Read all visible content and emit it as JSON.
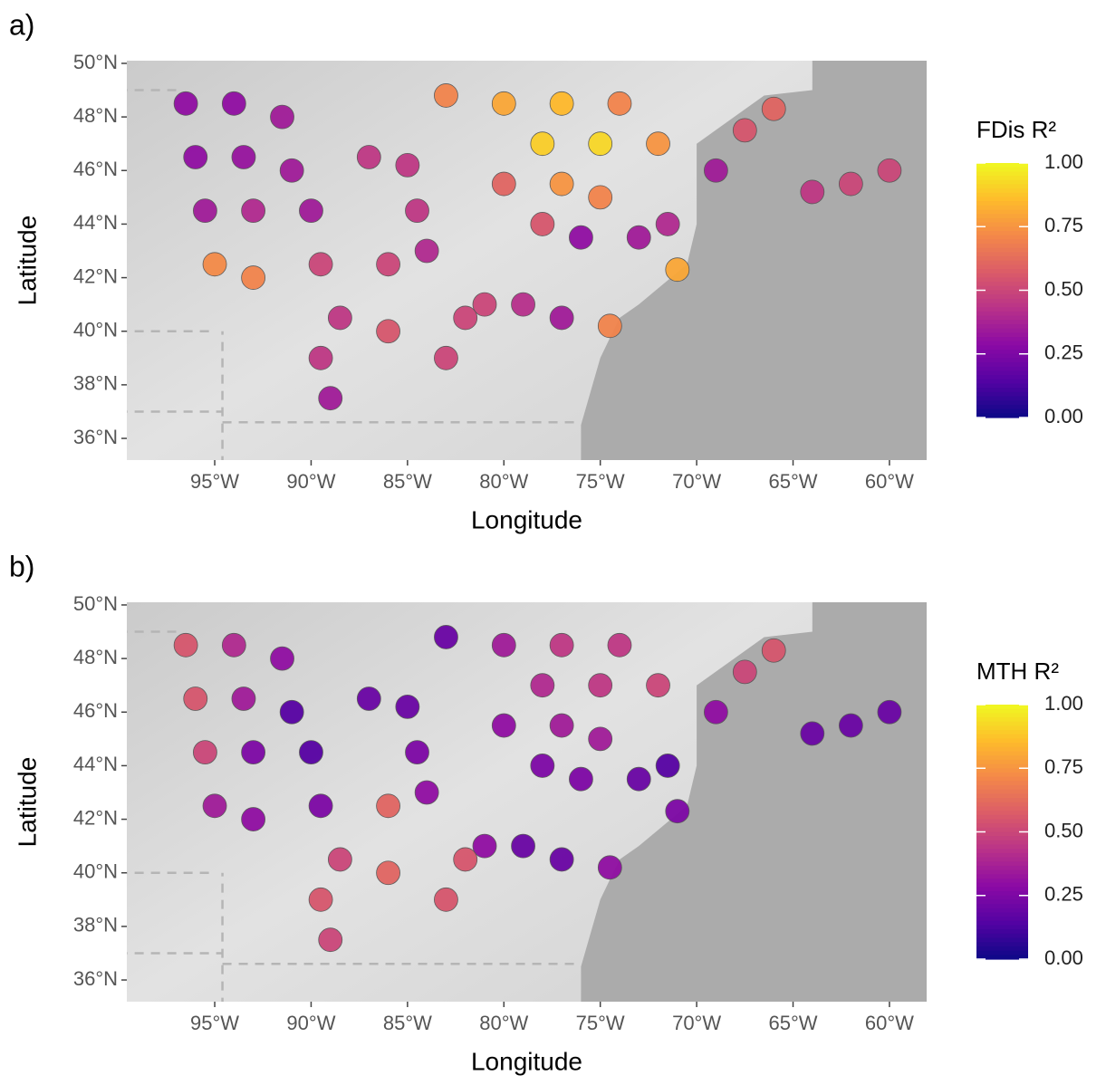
{
  "chart_data": [
    {
      "type": "scatter",
      "panel_label": "a)",
      "xlabel": "Longitude",
      "ylabel": "Latitude",
      "colorbar_title": "FDis R²",
      "colormap": "plasma",
      "clim": [
        0,
        1
      ],
      "xlim": [
        -99.56,
        -58.07
      ],
      "ylim": [
        35.19,
        50.1
      ],
      "xticks": [
        {
          "value": -95,
          "label": "95°W"
        },
        {
          "value": -90,
          "label": "90°W"
        },
        {
          "value": -85,
          "label": "85°W"
        },
        {
          "value": -80,
          "label": "80°W"
        },
        {
          "value": -75,
          "label": "75°W"
        },
        {
          "value": -70,
          "label": "70°W"
        },
        {
          "value": -65,
          "label": "65°W"
        },
        {
          "value": -60,
          "label": "60°W"
        }
      ],
      "yticks": [
        {
          "value": 36,
          "label": "36°N"
        },
        {
          "value": 38,
          "label": "38°N"
        },
        {
          "value": 40,
          "label": "40°N"
        },
        {
          "value": 42,
          "label": "42°N"
        },
        {
          "value": 44,
          "label": "44°N"
        },
        {
          "value": 46,
          "label": "46°N"
        },
        {
          "value": 48,
          "label": "48°N"
        },
        {
          "value": 50,
          "label": "50°N"
        }
      ],
      "colorbar_ticks": [
        {
          "value": 0,
          "label": "0.00"
        },
        {
          "value": 0.25,
          "label": "0.25"
        },
        {
          "value": 0.5,
          "label": "0.50"
        },
        {
          "value": 0.75,
          "label": "0.75"
        },
        {
          "value": 1,
          "label": "1.00"
        }
      ],
      "x": [
        -96.5,
        -94,
        -91.5,
        -96,
        -93.5,
        -91,
        -95.5,
        -93,
        -90,
        -95,
        -93,
        -89.5,
        -88.5,
        -89.5,
        -89,
        -87,
        -85,
        -84.5,
        -86,
        -84,
        -82,
        -86,
        -83,
        -81,
        -79,
        -77,
        -83,
        -80,
        -77,
        -74,
        -78,
        -75,
        -72,
        -80,
        -77,
        -75,
        -78,
        -76,
        -73,
        -71,
        -74.5,
        -71.5,
        -69,
        -67.5,
        -66,
        -64,
        -62,
        -60
      ],
      "y": [
        48.5,
        48.5,
        48,
        46.5,
        46.5,
        46,
        44.5,
        44.5,
        44.5,
        42.5,
        42,
        42.5,
        40.5,
        39,
        37.5,
        46.5,
        46.2,
        44.5,
        42.5,
        43,
        40.5,
        40,
        39,
        41,
        41,
        40.5,
        48.8,
        48.5,
        48.5,
        48.5,
        47,
        47,
        47,
        45.5,
        45.5,
        45,
        44,
        43.5,
        43.5,
        42.3,
        40.2,
        44,
        46,
        47.5,
        48.3,
        45.2,
        45.5,
        46
      ],
      "values": [
        0.3,
        0.3,
        0.35,
        0.3,
        0.32,
        0.35,
        0.35,
        0.4,
        0.35,
        0.72,
        0.7,
        0.5,
        0.45,
        0.45,
        0.35,
        0.45,
        0.45,
        0.45,
        0.5,
        0.4,
        0.5,
        0.55,
        0.5,
        0.5,
        0.42,
        0.35,
        0.7,
        0.8,
        0.85,
        0.7,
        0.9,
        0.92,
        0.75,
        0.6,
        0.75,
        0.7,
        0.55,
        0.3,
        0.35,
        0.8,
        0.7,
        0.4,
        0.35,
        0.55,
        0.6,
        0.45,
        0.5,
        0.5
      ]
    },
    {
      "type": "scatter",
      "panel_label": "b)",
      "xlabel": "Longitude",
      "ylabel": "Latitude",
      "colorbar_title": "MTH R²",
      "colormap": "plasma",
      "clim": [
        0,
        1
      ],
      "xlim": [
        -99.56,
        -58.07
      ],
      "ylim": [
        35.19,
        50.1
      ],
      "xticks": [
        {
          "value": -95,
          "label": "95°W"
        },
        {
          "value": -90,
          "label": "90°W"
        },
        {
          "value": -85,
          "label": "85°W"
        },
        {
          "value": -80,
          "label": "80°W"
        },
        {
          "value": -75,
          "label": "75°W"
        },
        {
          "value": -70,
          "label": "70°W"
        },
        {
          "value": -65,
          "label": "65°W"
        },
        {
          "value": -60,
          "label": "60°W"
        }
      ],
      "yticks": [
        {
          "value": 36,
          "label": "36°N"
        },
        {
          "value": 38,
          "label": "38°N"
        },
        {
          "value": 40,
          "label": "40°N"
        },
        {
          "value": 42,
          "label": "42°N"
        },
        {
          "value": 44,
          "label": "44°N"
        },
        {
          "value": 46,
          "label": "46°N"
        },
        {
          "value": 48,
          "label": "48°N"
        },
        {
          "value": 50,
          "label": "50°N"
        }
      ],
      "colorbar_ticks": [
        {
          "value": 0,
          "label": "0.00"
        },
        {
          "value": 0.25,
          "label": "0.25"
        },
        {
          "value": 0.5,
          "label": "0.50"
        },
        {
          "value": 0.75,
          "label": "0.75"
        },
        {
          "value": 1,
          "label": "1.00"
        }
      ],
      "x": [
        -96.5,
        -94,
        -91.5,
        -96,
        -93.5,
        -91,
        -95.5,
        -93,
        -90,
        -95,
        -93,
        -89.5,
        -88.5,
        -89.5,
        -89,
        -87,
        -85,
        -84.5,
        -86,
        -84,
        -82,
        -86,
        -83,
        -81,
        -79,
        -77,
        -83,
        -80,
        -77,
        -74,
        -78,
        -75,
        -72,
        -80,
        -77,
        -75,
        -78,
        -76,
        -73,
        -71,
        -74.5,
        -71.5,
        -69,
        -67.5,
        -66,
        -64,
        -62,
        -60
      ],
      "y": [
        48.5,
        48.5,
        48,
        46.5,
        46.5,
        46,
        44.5,
        44.5,
        44.5,
        42.5,
        42,
        42.5,
        40.5,
        39,
        37.5,
        46.5,
        46.2,
        44.5,
        42.5,
        43,
        40.5,
        40,
        39,
        41,
        41,
        40.5,
        48.8,
        48.5,
        48.5,
        48.5,
        47,
        47,
        47,
        45.5,
        45.5,
        45,
        44,
        43.5,
        43.5,
        42.3,
        40.2,
        44,
        46,
        47.5,
        48.3,
        45.2,
        45.5,
        46
      ],
      "values": [
        0.55,
        0.4,
        0.3,
        0.55,
        0.35,
        0.15,
        0.5,
        0.25,
        0.15,
        0.35,
        0.3,
        0.25,
        0.5,
        0.55,
        0.5,
        0.2,
        0.2,
        0.25,
        0.6,
        0.3,
        0.55,
        0.6,
        0.55,
        0.3,
        0.2,
        0.2,
        0.2,
        0.35,
        0.45,
        0.45,
        0.4,
        0.45,
        0.5,
        0.3,
        0.35,
        0.35,
        0.25,
        0.25,
        0.2,
        0.25,
        0.3,
        0.15,
        0.3,
        0.5,
        0.55,
        0.2,
        0.2,
        0.2
      ]
    }
  ]
}
